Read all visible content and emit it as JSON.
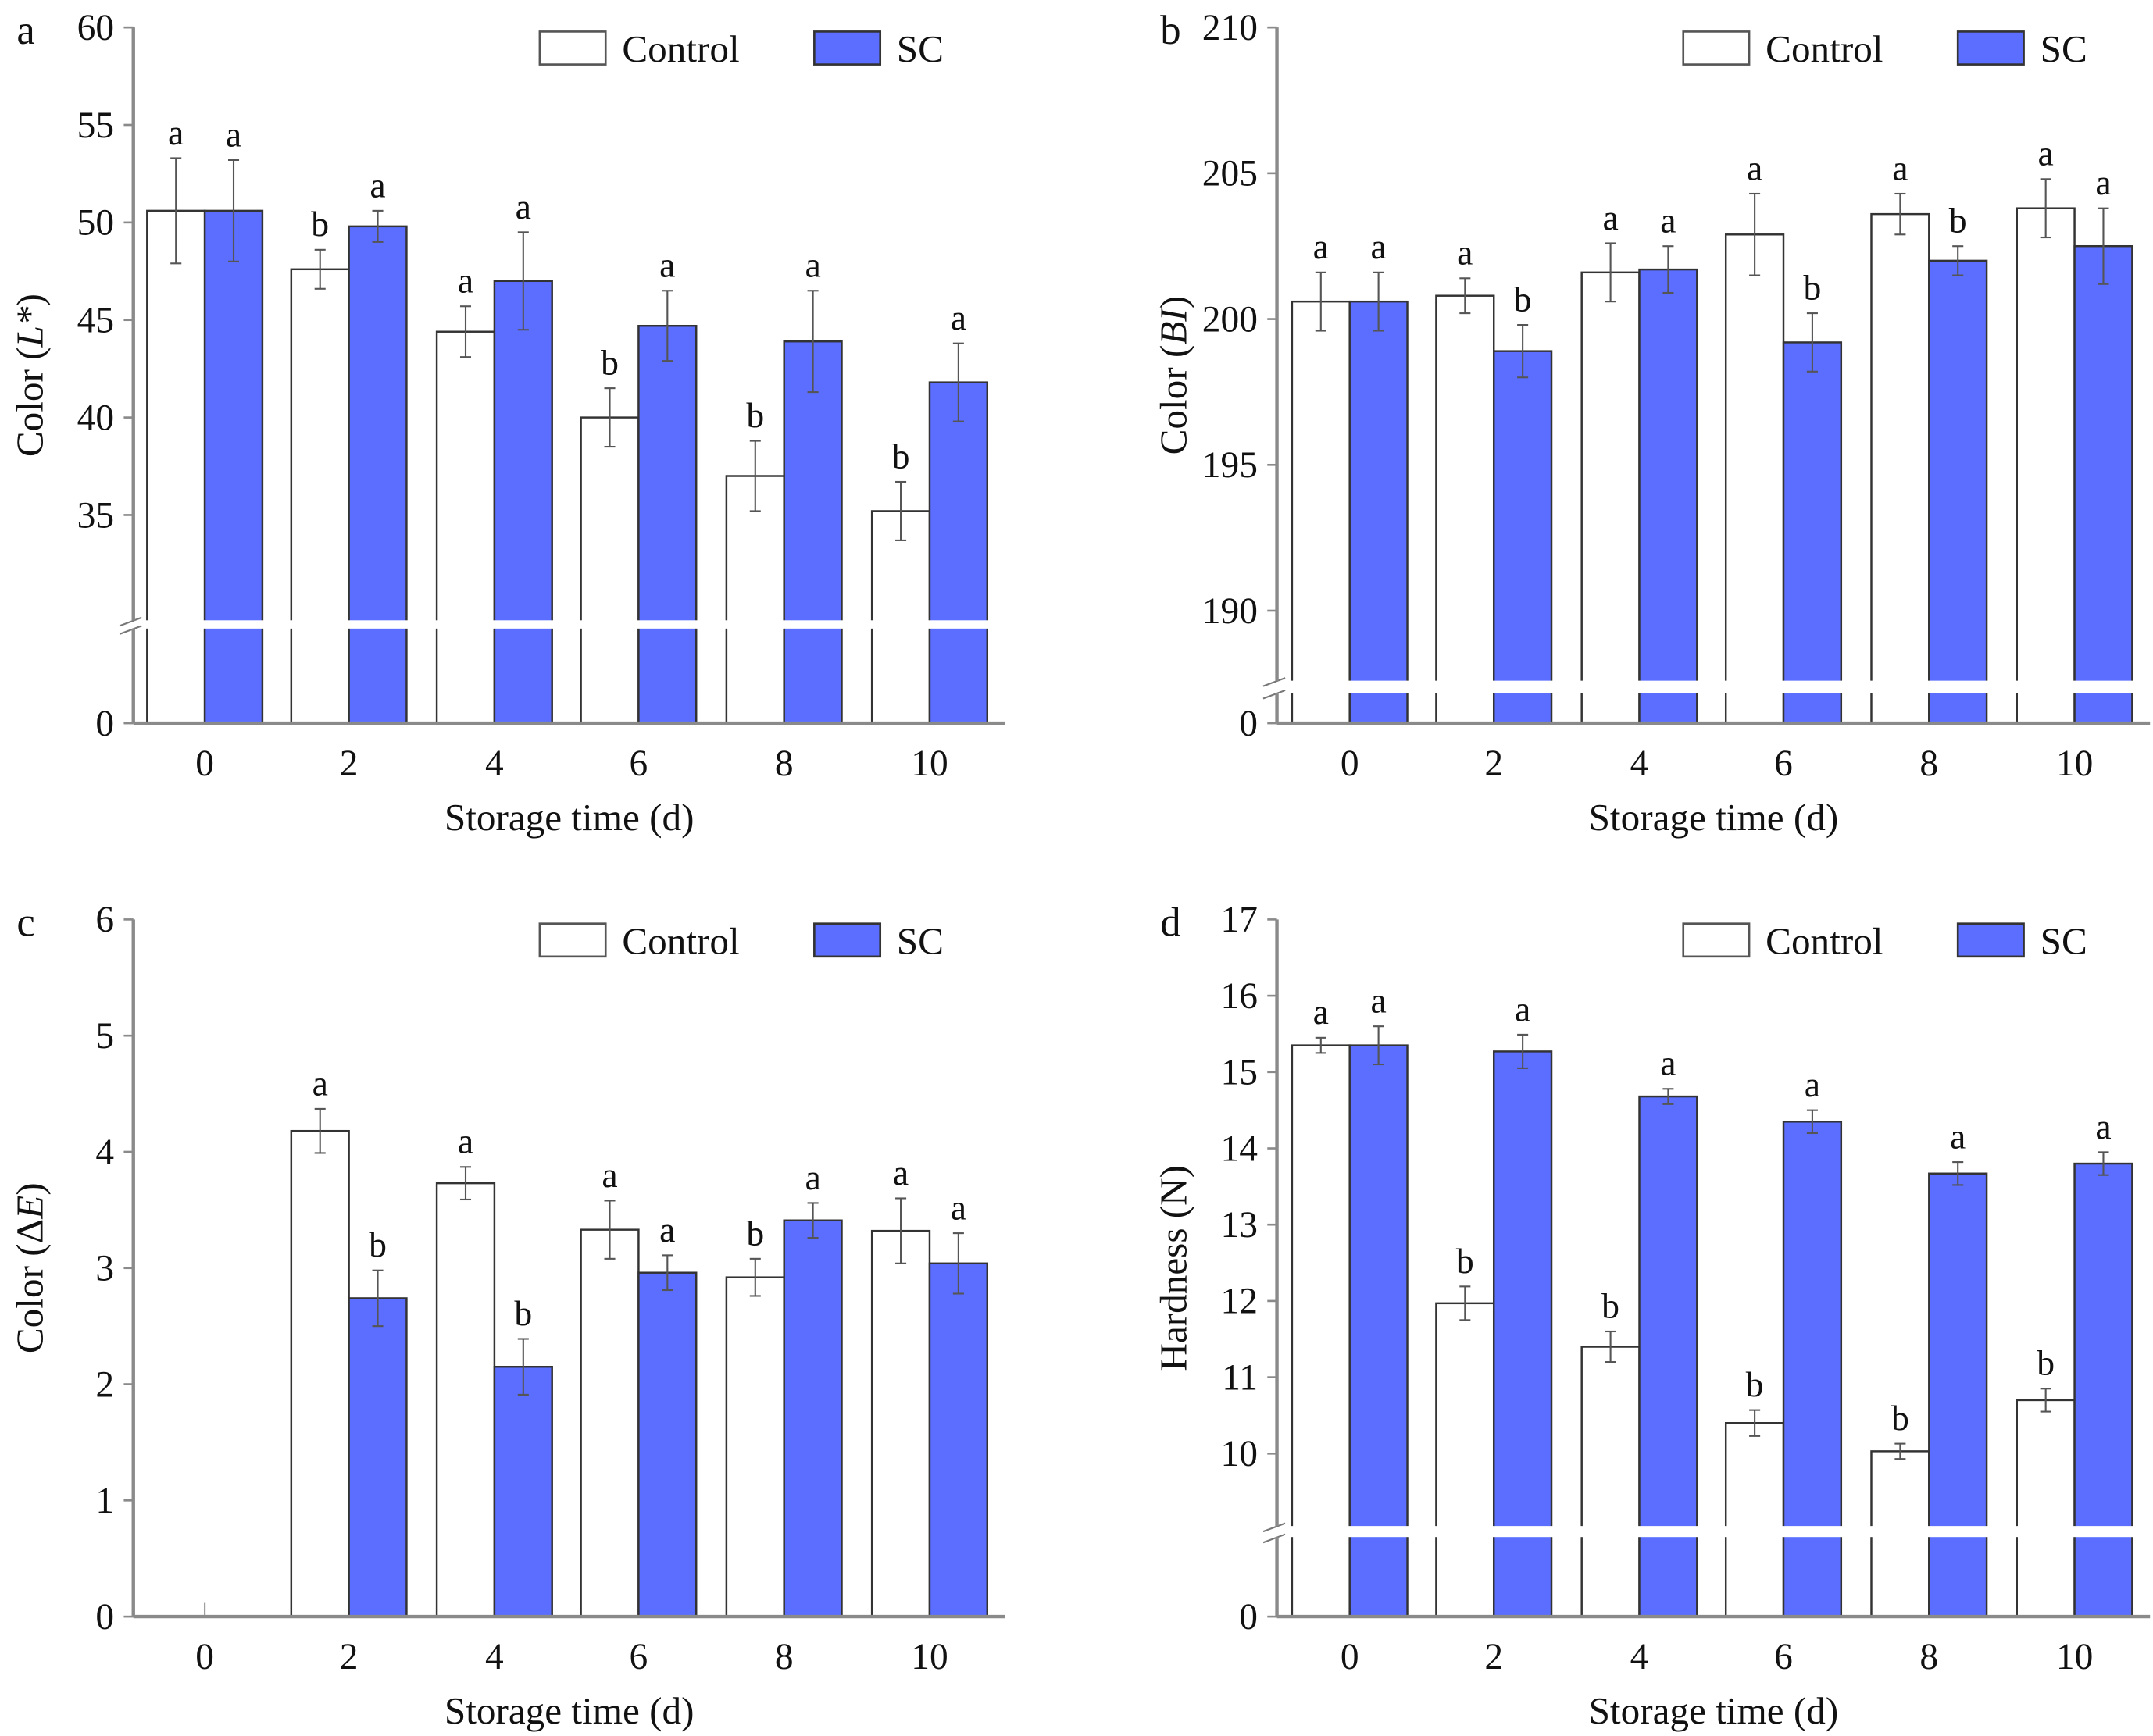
{
  "colors": {
    "control": "#ffffff",
    "sc": "#5b6eff",
    "axis": "#8a8a8a",
    "bar_edge": "#333333"
  },
  "legend": {
    "control": "Control",
    "sc": "SC"
  },
  "chart_data": [
    {
      "panel": "a",
      "type": "bar",
      "categories": [
        "0",
        "2",
        "4",
        "6",
        "8",
        "10"
      ],
      "xlabel": "Storage time (d)",
      "ylabel": {
        "pre": "Color (",
        "italic": "L*",
        "post": ")"
      },
      "yticks": [
        0,
        35,
        40,
        45,
        50,
        55,
        60
      ],
      "ylim": [
        0,
        60
      ],
      "axis_break": [
        0,
        29.6
      ],
      "series": [
        {
          "name": "Control",
          "values": [
            50.6,
            47.6,
            44.4,
            40.0,
            37.0,
            35.2
          ],
          "errors": [
            2.7,
            1.0,
            1.3,
            1.5,
            1.8,
            1.5
          ],
          "letters": [
            "a",
            "b",
            "a",
            "b",
            "b",
            "b"
          ]
        },
        {
          "name": "SC",
          "values": [
            50.6,
            49.8,
            47.0,
            44.7,
            43.9,
            41.8
          ],
          "errors": [
            2.6,
            0.8,
            2.5,
            1.8,
            2.6,
            2.0
          ],
          "letters": [
            "a",
            "a",
            "a",
            "a",
            "a",
            "a"
          ]
        }
      ]
    },
    {
      "panel": "b",
      "type": "bar",
      "categories": [
        "0",
        "2",
        "4",
        "6",
        "8",
        "10"
      ],
      "xlabel": "Storage time (d)",
      "ylabel": {
        "pre": "Color (",
        "italic": "BI",
        "post": ")"
      },
      "yticks": [
        0,
        190,
        195,
        200,
        205,
        210
      ],
      "ylim": [
        0,
        210
      ],
      "axis_break": [
        0,
        187.6
      ],
      "series": [
        {
          "name": "Control",
          "values": [
            200.6,
            200.8,
            201.6,
            202.9,
            203.6,
            203.8
          ],
          "errors": [
            1.0,
            0.6,
            1.0,
            1.4,
            0.7,
            1.0
          ],
          "letters": [
            "a",
            "a",
            "a",
            "a",
            "a",
            "a"
          ]
        },
        {
          "name": "SC",
          "values": [
            200.6,
            198.9,
            201.7,
            199.2,
            202.0,
            202.5
          ],
          "errors": [
            1.0,
            0.9,
            0.8,
            1.0,
            0.5,
            1.3
          ],
          "letters": [
            "a",
            "b",
            "a",
            "b",
            "b",
            "a"
          ]
        }
      ]
    },
    {
      "panel": "c",
      "type": "bar",
      "categories": [
        "0",
        "2",
        "4",
        "6",
        "8",
        "10"
      ],
      "xlabel": "Storage time (d)",
      "ylabel": {
        "pre": "Color (Δ",
        "italic": "E",
        "post": ")"
      },
      "yticks": [
        0,
        1,
        2,
        3,
        4,
        5,
        6
      ],
      "ylim": [
        0,
        6
      ],
      "axis_break": null,
      "series": [
        {
          "name": "Control",
          "values": [
            0,
            4.18,
            3.73,
            3.33,
            2.92,
            3.32
          ],
          "errors": [
            0,
            0.19,
            0.14,
            0.25,
            0.16,
            0.28
          ],
          "letters": [
            "",
            "a",
            "a",
            "a",
            "b",
            "a"
          ]
        },
        {
          "name": "SC",
          "values": [
            0,
            2.74,
            2.15,
            2.96,
            3.41,
            3.04
          ],
          "errors": [
            0,
            0.24,
            0.24,
            0.15,
            0.15,
            0.26
          ],
          "letters": [
            "",
            "b",
            "b",
            "a",
            "a",
            "a"
          ]
        }
      ]
    },
    {
      "panel": "d",
      "type": "bar",
      "categories": [
        "0",
        "2",
        "4",
        "6",
        "8",
        "10"
      ],
      "xlabel": "Storage time (d)",
      "ylabel": {
        "pre": "Hardness (N)",
        "italic": "",
        "post": ""
      },
      "yticks": [
        0,
        10,
        11,
        12,
        13,
        14,
        15,
        16,
        17
      ],
      "ylim": [
        0,
        17
      ],
      "axis_break": [
        0,
        9.05
      ],
      "series": [
        {
          "name": "Control",
          "values": [
            15.35,
            11.97,
            11.4,
            10.4,
            10.03,
            10.7
          ],
          "errors": [
            0.1,
            0.22,
            0.2,
            0.17,
            0.1,
            0.15
          ],
          "letters": [
            "a",
            "b",
            "b",
            "b",
            "b",
            "b"
          ]
        },
        {
          "name": "SC",
          "values": [
            15.35,
            15.27,
            14.68,
            14.35,
            13.67,
            13.8
          ],
          "errors": [
            0.25,
            0.22,
            0.1,
            0.15,
            0.15,
            0.15
          ],
          "letters": [
            "a",
            "a",
            "a",
            "a",
            "a",
            "a"
          ]
        }
      ]
    }
  ]
}
